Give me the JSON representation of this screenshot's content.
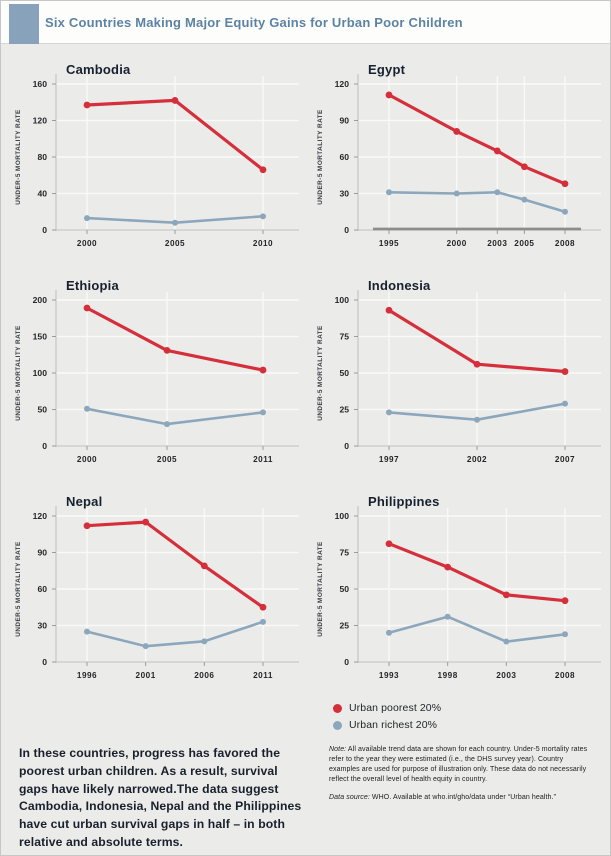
{
  "header": {
    "title": "Six Countries Making Major Equity Gains for Urban Poor Children"
  },
  "colors": {
    "accent_square": "#87a2ba",
    "header_title_text": "#5d83a3",
    "poorest_red": "#d42f3a",
    "richest_blue": "#8ca7bc",
    "page_background": "#ebebe9",
    "gridline": "#f9f9f7",
    "axis": "#c6c6c4",
    "dark_baseline": "#8d8d8b",
    "chart_title_text": "#16202e"
  },
  "legend": {
    "items": [
      {
        "label": "Urban poorest 20%",
        "color": "#d42f3a"
      },
      {
        "label": "Urban richest 20%",
        "color": "#8ca7bc"
      }
    ]
  },
  "footer": {
    "summary": "In these countries, progress has favored the poorest urban children. As a result, survival gaps have likely narrowed.The data suggest Cambodia, Indonesia, Nepal and the Philippines have cut urban survival gaps in half – in both relative and absolute terms.",
    "note_label": "Note:",
    "note_text": " All available trend data are shown for each country. Under-5 mortality rates refer to the year they were estimated (i.e., the DHS survey year). Country examples are used for purpose of illustration only. These data do not necessarily reflect the overall level of health equity in country.",
    "source_label": "Data source:",
    "source_text": " WHO. Available at who.int/gho/data under “Urban health.”"
  },
  "chart_data": [
    {
      "type": "line",
      "title": "Cambodia",
      "ylabel": "UNDER-5 MORTALITY RATE",
      "ylim": [
        0,
        160
      ],
      "yticks": [
        0,
        40,
        80,
        120,
        160
      ],
      "x": [
        2000,
        2005,
        2010
      ],
      "dark_baseline": false,
      "series": [
        {
          "name": "Urban poorest 20%",
          "color": "#d42f3a",
          "values": [
            137,
            142,
            66
          ]
        },
        {
          "name": "Urban richest 20%",
          "color": "#8ca7bc",
          "values": [
            13,
            8,
            15
          ]
        }
      ]
    },
    {
      "type": "line",
      "title": "Egypt",
      "ylabel": "UNDER-5 MORTALITY RATE",
      "ylim": [
        0,
        120
      ],
      "yticks": [
        0,
        30,
        60,
        90,
        120
      ],
      "x": [
        1995,
        2000,
        2003,
        2005,
        2008
      ],
      "dark_baseline": true,
      "series": [
        {
          "name": "Urban poorest 20%",
          "color": "#d42f3a",
          "values": [
            111,
            81,
            65,
            52,
            38
          ]
        },
        {
          "name": "Urban richest 20%",
          "color": "#8ca7bc",
          "values": [
            31,
            30,
            31,
            25,
            15
          ]
        }
      ]
    },
    {
      "type": "line",
      "title": "Ethiopia",
      "ylabel": "UNDER-5 MORTALITY RATE",
      "ylim": [
        0,
        200
      ],
      "yticks": [
        0,
        50,
        100,
        150,
        200
      ],
      "x": [
        2000,
        2005,
        2011
      ],
      "dark_baseline": false,
      "series": [
        {
          "name": "Urban poorest 20%",
          "color": "#d42f3a",
          "values": [
            189,
            131,
            104
          ]
        },
        {
          "name": "Urban richest 20%",
          "color": "#8ca7bc",
          "values": [
            51,
            30,
            46
          ]
        }
      ]
    },
    {
      "type": "line",
      "title": "Indonesia",
      "ylabel": "UNDER-5 MORTALITY RATE",
      "ylim": [
        0,
        100
      ],
      "yticks": [
        0,
        25,
        50,
        75,
        100
      ],
      "x": [
        1997,
        2002,
        2007
      ],
      "dark_baseline": false,
      "series": [
        {
          "name": "Urban poorest 20%",
          "color": "#d42f3a",
          "values": [
            93,
            56,
            51
          ]
        },
        {
          "name": "Urban richest 20%",
          "color": "#8ca7bc",
          "values": [
            23,
            18,
            29
          ]
        }
      ]
    },
    {
      "type": "line",
      "title": "Nepal",
      "ylabel": "UNDER-5 MORTALITY RATE",
      "ylim": [
        0,
        120
      ],
      "yticks": [
        0,
        30,
        60,
        90,
        120
      ],
      "x": [
        1996,
        2001,
        2006,
        2011
      ],
      "dark_baseline": false,
      "series": [
        {
          "name": "Urban poorest 20%",
          "color": "#d42f3a",
          "values": [
            112,
            115,
            79,
            45
          ]
        },
        {
          "name": "Urban richest 20%",
          "color": "#8ca7bc",
          "values": [
            25,
            13,
            17,
            33
          ]
        }
      ]
    },
    {
      "type": "line",
      "title": "Philippines",
      "ylabel": "UNDER-5 MORTALITY RATE",
      "ylim": [
        0,
        100
      ],
      "yticks": [
        0,
        25,
        50,
        75,
        100
      ],
      "x": [
        1993,
        1998,
        2003,
        2008
      ],
      "dark_baseline": false,
      "series": [
        {
          "name": "Urban poorest 20%",
          "color": "#d42f3a",
          "values": [
            81,
            65,
            46,
            42
          ]
        },
        {
          "name": "Urban richest 20%",
          "color": "#8ca7bc",
          "values": [
            20,
            31,
            14,
            19
          ]
        }
      ]
    }
  ]
}
